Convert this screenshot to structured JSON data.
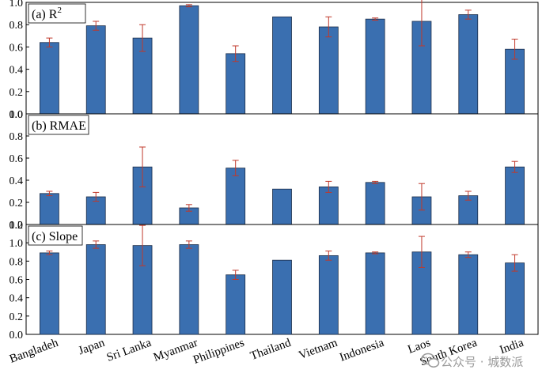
{
  "chart_data": {
    "type": "bar",
    "categories": [
      "Bangladeh",
      "Japan",
      "Sri Lanka",
      "Myanmar",
      "Philippines",
      "Thailand",
      "Vietnam",
      "Indonesia",
      "Laos",
      "South Korea",
      "India"
    ],
    "bar_color": "#3a6fb0",
    "error_color": "#c0392b",
    "grid": false,
    "panels": [
      {
        "label_prefix": "(a)",
        "label_main": "R",
        "label_sup": "2",
        "ylim": [
          0,
          1.0
        ],
        "yticks": [
          "0.0",
          "0.2",
          "0.4",
          "0.6",
          "0.8",
          "1.0"
        ],
        "values": [
          0.64,
          0.79,
          0.68,
          0.97,
          0.54,
          0.87,
          0.78,
          0.85,
          0.83,
          0.89,
          0.58
        ],
        "errors": [
          0.04,
          0.04,
          0.12,
          0.01,
          0.07,
          0.0,
          0.09,
          0.01,
          0.22,
          0.04,
          0.09
        ]
      },
      {
        "label_prefix": "(b)",
        "label_main": "RMAE",
        "label_sup": "",
        "ylim": [
          0,
          1.0
        ],
        "yticks": [
          "0.0",
          "0.2",
          "0.4",
          "0.6",
          "0.8",
          "1.0"
        ],
        "values": [
          0.28,
          0.25,
          0.52,
          0.15,
          0.51,
          0.32,
          0.34,
          0.38,
          0.25,
          0.26,
          0.52
        ],
        "errors": [
          0.02,
          0.04,
          0.18,
          0.03,
          0.07,
          0.0,
          0.05,
          0.01,
          0.12,
          0.04,
          0.05
        ]
      },
      {
        "label_prefix": "(c)",
        "label_main": "Slope",
        "label_sup": "",
        "ylim": [
          0,
          1.2
        ],
        "yticks": [
          "0.0",
          "0.2",
          "0.4",
          "0.6",
          "0.8",
          "1.0",
          "1.2"
        ],
        "values": [
          0.89,
          0.98,
          0.97,
          0.98,
          0.65,
          0.81,
          0.86,
          0.89,
          0.9,
          0.87,
          0.78
        ],
        "errors": [
          0.02,
          0.04,
          0.22,
          0.04,
          0.05,
          0.0,
          0.05,
          0.01,
          0.17,
          0.03,
          0.09
        ]
      }
    ]
  },
  "watermark": {
    "icon": "wechat-icon",
    "text": "公众号 · 城数派"
  }
}
